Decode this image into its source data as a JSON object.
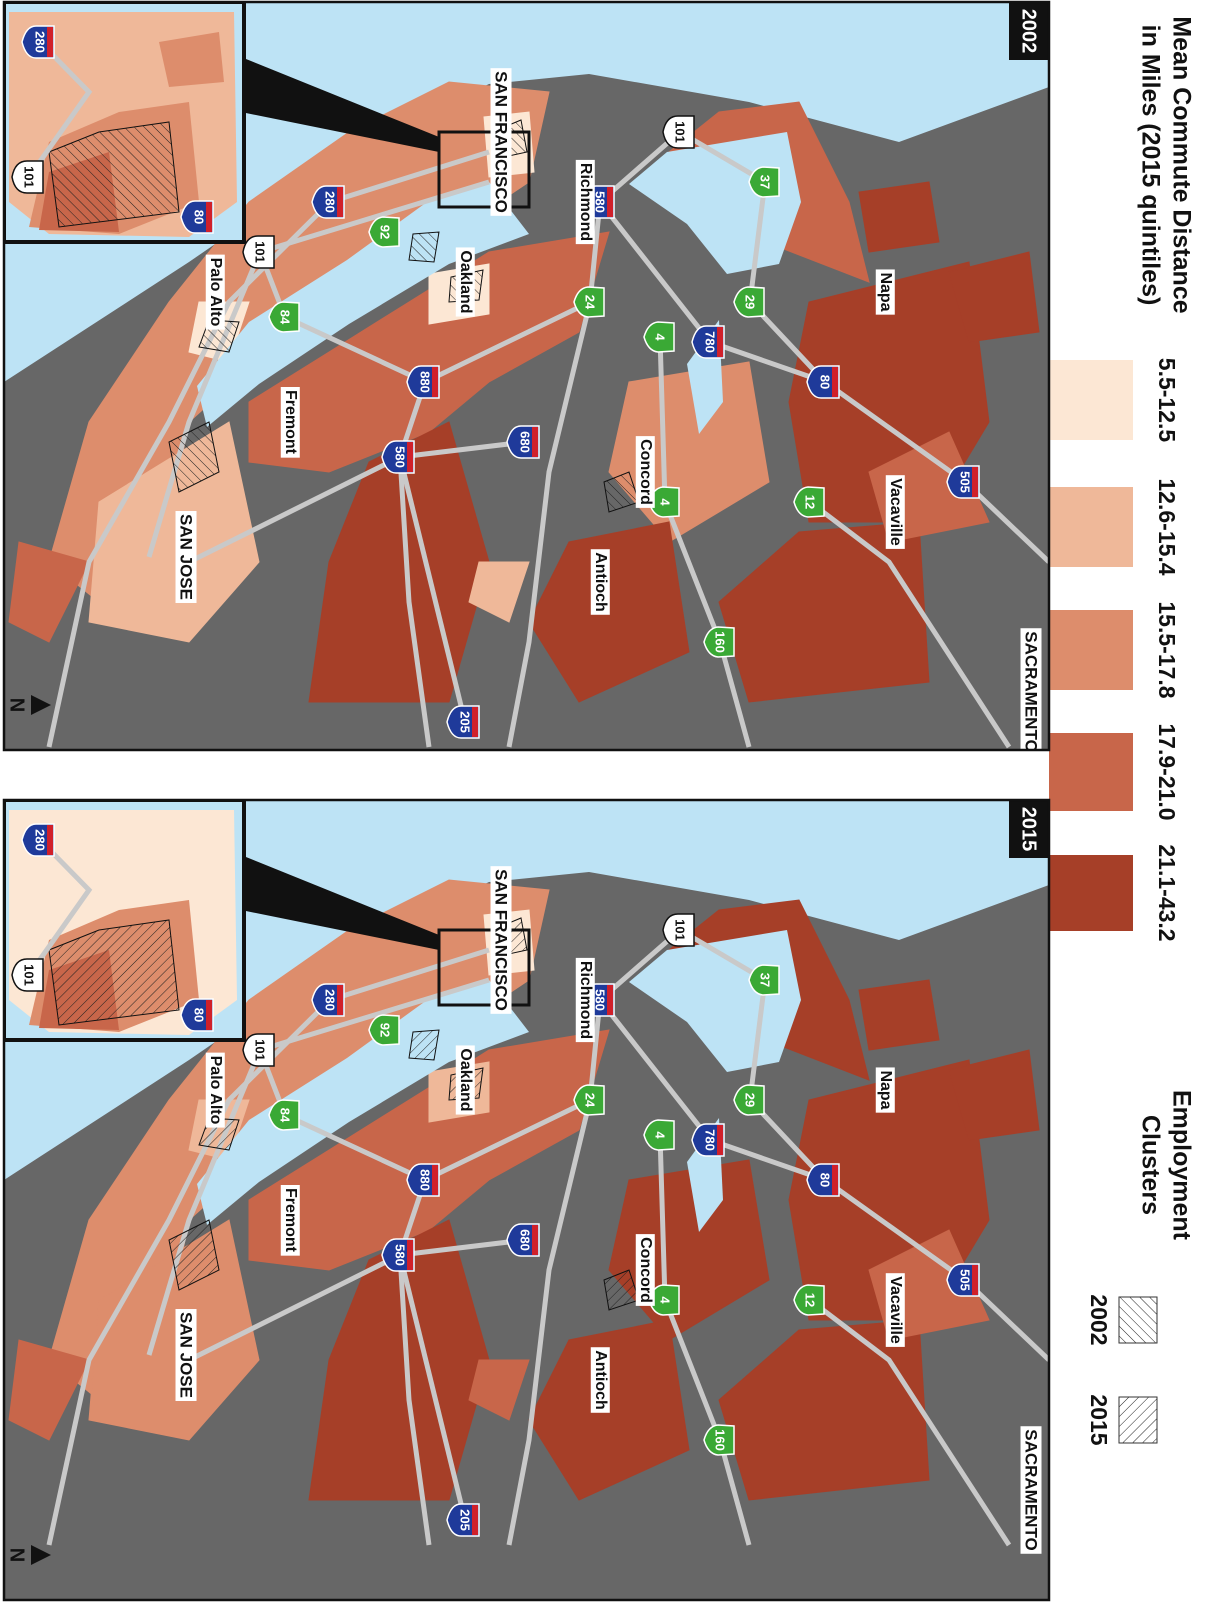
{
  "legend": {
    "title": [
      "Mean Commute Distance",
      "in Miles (2015 quintiles)"
    ],
    "classes": [
      {
        "label": "5.5-12.5",
        "color": "#fce7d4"
      },
      {
        "label": "12.6-15.4",
        "color": "#efb899"
      },
      {
        "label": "15.5-17.8",
        "color": "#dd8d6c"
      },
      {
        "label": "17.9-21.0",
        "color": "#c8664a"
      },
      {
        "label": "21.1-43.2",
        "color": "#a63f28"
      }
    ]
  },
  "clusters_legend": {
    "title": [
      "Employment",
      "Clusters"
    ],
    "items": [
      "2002",
      "2015"
    ]
  },
  "panels": [
    {
      "year": "2002"
    },
    {
      "year": "2015"
    }
  ],
  "places": [
    "SAN FRANCISCO",
    "Richmond",
    "Oakland",
    "Palo Alto",
    "Fremont",
    "SAN JOSE",
    "Concord",
    "Antioch",
    "Vacaville",
    "Napa",
    "SACRAMENTO"
  ],
  "shields": [
    "101",
    "580",
    "37",
    "29",
    "780",
    "80",
    "4",
    "24",
    "880",
    "92",
    "84",
    "280",
    "680",
    "580",
    "505",
    "12",
    "4",
    "160",
    "205",
    "101",
    "280",
    "101",
    "80"
  ],
  "north": "N"
}
